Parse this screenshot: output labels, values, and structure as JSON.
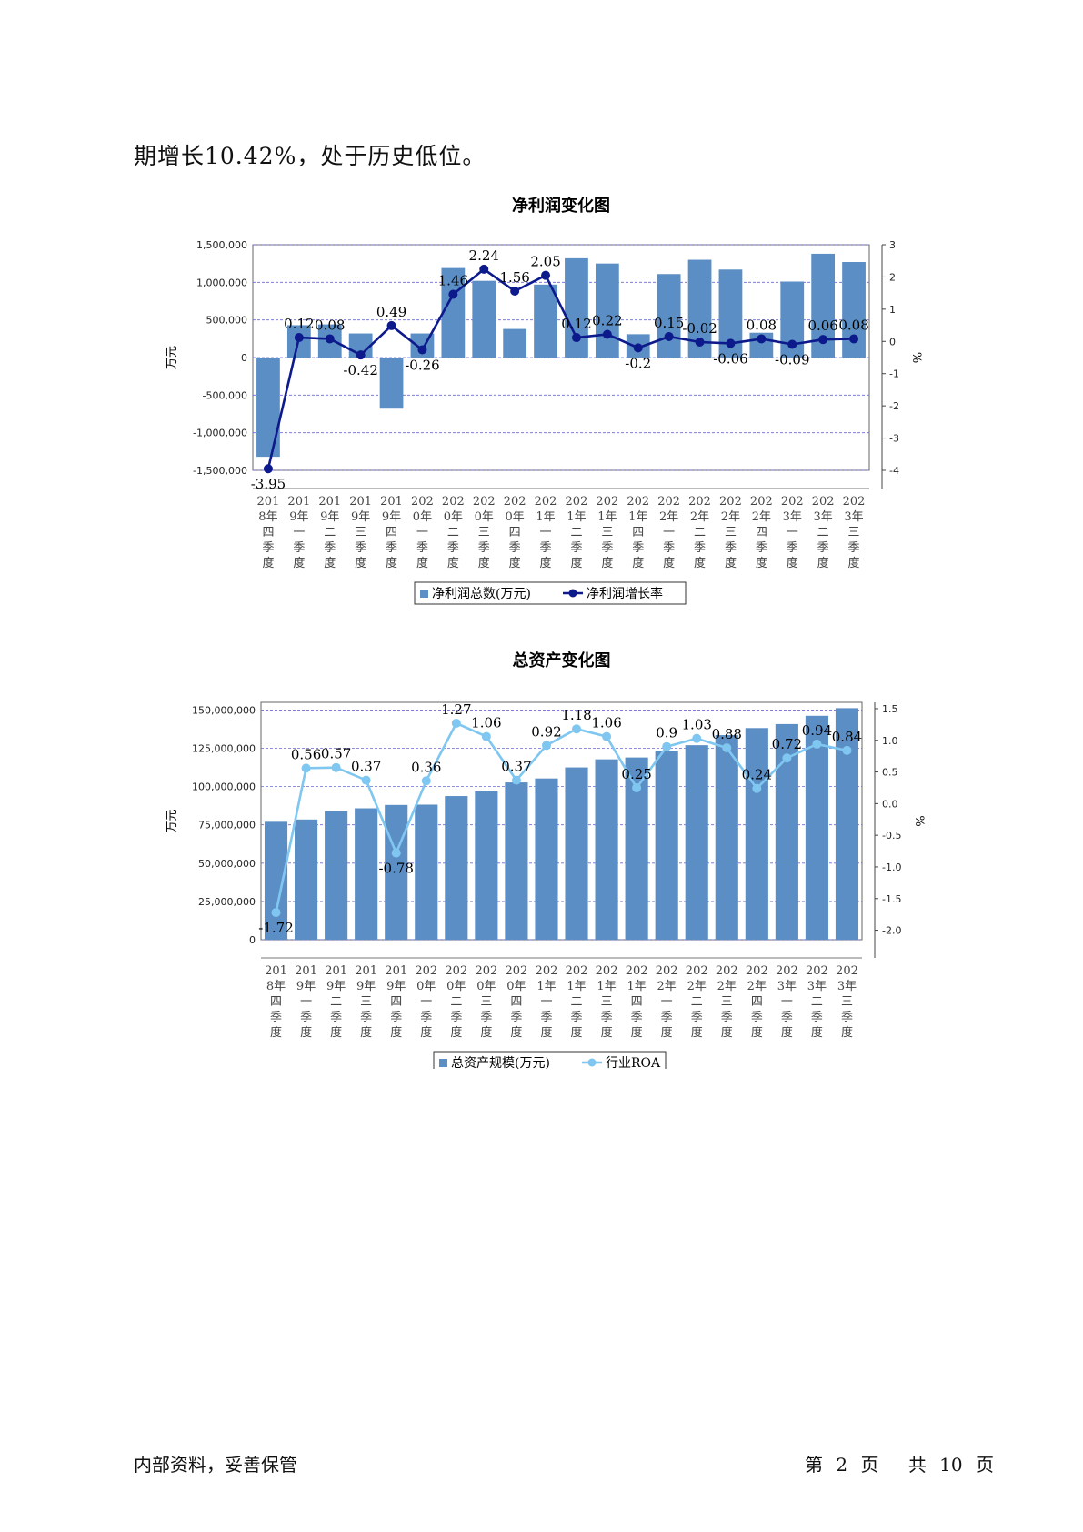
{
  "intro_text": "期增长10.42%，处于历史低位。",
  "footer": {
    "left": "内部资料，妥善保管",
    "page_prefix": "第",
    "page_number": "2",
    "page_unit": "页",
    "total_prefix": "共",
    "total_number": "10",
    "total_unit": "页"
  },
  "colors": {
    "bar": "#5b8ec4",
    "line1": "#0d1a8c",
    "line2": "#7fc7f0",
    "grid": "#6a6ad8"
  },
  "chart_data": [
    {
      "type": "bar",
      "title": "净利润变化图",
      "ylabel": "万元",
      "y2label": "%",
      "categories": [
        "2018年四季度",
        "2019年一季度",
        "2019年二季度",
        "2019年三季度",
        "2019年四季度",
        "2020年一季度",
        "2020年二季度",
        "2020年三季度",
        "2020年四季度",
        "2021年一季度",
        "2021年二季度",
        "2021年三季度",
        "2021年四季度",
        "2022年一季度",
        "2022年二季度",
        "2022年三季度",
        "2022年四季度",
        "2023年一季度",
        "2023年二季度",
        "2023年三季度"
      ],
      "ylim": [
        -1500000,
        1500000
      ],
      "y2lim": [
        -4,
        3
      ],
      "yticks": [
        "-1,500,000",
        "-1,000,000",
        "-500,000",
        "0",
        "500,000",
        "1,000,000",
        "1,500,000"
      ],
      "y2ticks": [
        "-4",
        "-3",
        "-2",
        "-1",
        "0",
        "1",
        "2",
        "3"
      ],
      "series": [
        {
          "name": "净利润总数(万元)",
          "type": "bar",
          "values": [
            -1320000,
            430000,
            440000,
            320000,
            -680000,
            320000,
            1190000,
            1020000,
            380000,
            970000,
            1320000,
            1250000,
            310000,
            1110000,
            1300000,
            1170000,
            330000,
            1010000,
            1380000,
            1270000
          ]
        },
        {
          "name": "净利润增长率",
          "type": "line",
          "axis": "right",
          "values": [
            -3.95,
            0.12,
            0.08,
            -0.42,
            0.49,
            -0.26,
            1.46,
            2.24,
            1.56,
            2.05,
            0.12,
            0.22,
            -0.2,
            0.15,
            -0.02,
            -0.06,
            0.08,
            -0.09,
            0.06,
            0.08
          ],
          "labels": [
            "-3.95",
            "0.12",
            "0.08",
            "-0.42",
            "0.49",
            "-0.26",
            "1.46",
            "2.24",
            "1.56",
            "2.05",
            "0.12",
            "0.22",
            "-0.2",
            "0.15",
            "-0.02",
            "-0.06",
            "0.08",
            "-0.09",
            "0.06",
            "0.08"
          ]
        }
      ],
      "legend": "bottom"
    },
    {
      "type": "bar",
      "title": "总资产变化图",
      "ylabel": "万元",
      "y2label": "%",
      "categories": [
        "2018年四季度",
        "2019年一季度",
        "2019年二季度",
        "2019年三季度",
        "2019年四季度",
        "2020年一季度",
        "2020年二季度",
        "2020年三季度",
        "2020年四季度",
        "2021年一季度",
        "2021年二季度",
        "2021年三季度",
        "2021年四季度",
        "2022年一季度",
        "2022年二季度",
        "2022年三季度",
        "2022年四季度",
        "2023年一季度",
        "2023年二季度",
        "2023年三季度"
      ],
      "ylim": [
        0,
        155000000
      ],
      "y2lim": [
        -2.15,
        1.6
      ],
      "yticks": [
        "0",
        "25,000,000",
        "50,000,000",
        "75,000,000",
        "100,000,000",
        "125,000,000",
        "150,000,000"
      ],
      "y2ticks": [
        "-2.0",
        "-1.5",
        "-1.0",
        "-0.5",
        "0.0",
        "0.5",
        "1.0",
        "1.5"
      ],
      "series": [
        {
          "name": "总资产规模(万元)",
          "type": "bar",
          "values": [
            77000000,
            78500000,
            84000000,
            85800000,
            88000000,
            88200000,
            93800000,
            96800000,
            102700000,
            105300000,
            112500000,
            117800000,
            119000000,
            123500000,
            127000000,
            133600000,
            138200000,
            140800000,
            146200000,
            151200000
          ]
        },
        {
          "name": "行业ROA",
          "type": "line",
          "axis": "right",
          "values": [
            -1.72,
            0.56,
            0.57,
            0.37,
            -0.78,
            0.36,
            1.27,
            1.06,
            0.37,
            0.92,
            1.18,
            1.06,
            0.25,
            0.9,
            1.03,
            0.88,
            0.24,
            0.72,
            0.94,
            0.84
          ],
          "labels": [
            "-1.72",
            "0.56",
            "0.57",
            "0.37",
            "-0.78",
            "0.36",
            "1.27",
            "1.06",
            "0.37",
            "0.92",
            "1.18",
            "1.06",
            "0.25",
            "0.9",
            "1.03",
            "0.88",
            "0.24",
            "0.72",
            "0.94",
            "0.84"
          ]
        }
      ],
      "legend": "bottom"
    }
  ]
}
